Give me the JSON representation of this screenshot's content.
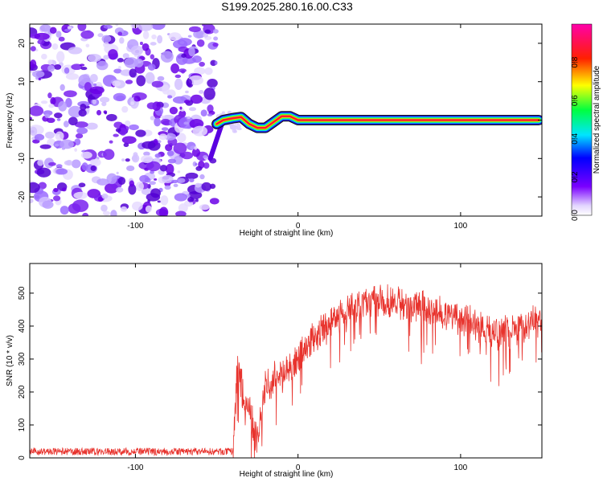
{
  "figure": {
    "title": "S199.2025.280.16.00.C33"
  },
  "chart_data": [
    {
      "type": "heatmap",
      "title": "S199.2025.280.16.00.C33",
      "xlabel": "Height of straight line (km)",
      "ylabel": "Frequency (Hz)",
      "xlim": [
        -165,
        150
      ],
      "ylim": [
        -25,
        25
      ],
      "xticks": [
        -100,
        0,
        100
      ],
      "xtick_labels": [
        "-100",
        "0",
        "100"
      ],
      "yticks": [
        -20,
        -10,
        0,
        10,
        20
      ],
      "ytick_labels": [
        "-20",
        "-10",
        "0",
        "10",
        "20"
      ],
      "noise_region_x": [
        -165,
        -50
      ],
      "signal_start_x": -50,
      "signal_ridge": [
        {
          "x": -50,
          "y": -1
        },
        {
          "x": -46,
          "y": 0
        },
        {
          "x": -40,
          "y": 0.5
        },
        {
          "x": -35,
          "y": 0.8
        },
        {
          "x": -30,
          "y": -1
        },
        {
          "x": -25,
          "y": -2
        },
        {
          "x": -20,
          "y": -2
        },
        {
          "x": -15,
          "y": -0.5
        },
        {
          "x": -10,
          "y": 1
        },
        {
          "x": -5,
          "y": 1
        },
        {
          "x": 0,
          "y": 0
        },
        {
          "x": 10,
          "y": 0
        },
        {
          "x": 20,
          "y": 0
        },
        {
          "x": 148,
          "y": 0
        }
      ],
      "colorbar": {
        "label": "Normalized spectral amplitude",
        "range": [
          0,
          1
        ],
        "ticks": [
          0.0,
          0.2,
          0.4,
          0.6,
          0.8
        ],
        "tick_labels": [
          "0.0",
          "0.2",
          "0.4",
          "0.6",
          "0.8"
        ],
        "colormap": "rainbow (violet-blue-cyan-green-yellow-red-magenta)"
      }
    },
    {
      "type": "line",
      "xlabel": "Height of straight line (km)",
      "ylabel": "SNR (10 * v/v)",
      "xlim": [
        -165,
        150
      ],
      "ylim": [
        0,
        590
      ],
      "xticks": [
        -100,
        0,
        100
      ],
      "xtick_labels": [
        "-100",
        "0",
        "100"
      ],
      "yticks": [
        0,
        100,
        200,
        300,
        400,
        500
      ],
      "ytick_labels": [
        "0",
        "100",
        "200",
        "300",
        "400",
        "500"
      ],
      "series": [
        {
          "name": "SNR",
          "color": "#e8332d",
          "trend": [
            {
              "x": -165,
              "y": 20
            },
            {
              "x": -40,
              "y": 20
            },
            {
              "x": -37,
              "y": 300
            },
            {
              "x": -33,
              "y": 160
            },
            {
              "x": -30,
              "y": 140
            },
            {
              "x": -25,
              "y": 50
            },
            {
              "x": -20,
              "y": 220
            },
            {
              "x": -10,
              "y": 250
            },
            {
              "x": 0,
              "y": 300
            },
            {
              "x": 10,
              "y": 370
            },
            {
              "x": 20,
              "y": 400
            },
            {
              "x": 30,
              "y": 450
            },
            {
              "x": 50,
              "y": 480
            },
            {
              "x": 75,
              "y": 460
            },
            {
              "x": 100,
              "y": 420
            },
            {
              "x": 120,
              "y": 380
            },
            {
              "x": 135,
              "y": 390
            },
            {
              "x": 150,
              "y": 430
            }
          ],
          "noise_amplitude": 45
        }
      ]
    }
  ]
}
